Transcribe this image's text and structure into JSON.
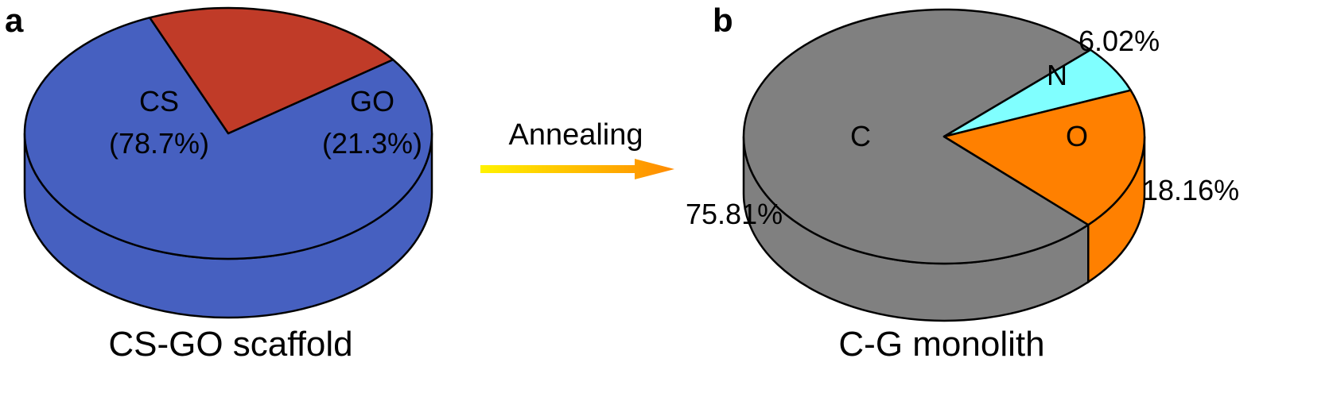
{
  "arrow": {
    "label": "Annealing"
  },
  "chart_data": [
    {
      "type": "pie",
      "panel_label": "a",
      "caption": "CS-GO scaffold",
      "slices": [
        {
          "label": "CS",
          "value_label": "(78.7%)",
          "value": 78.7,
          "color": "#4660C0"
        },
        {
          "label": "GO",
          "value_label": "(21.3%)",
          "value": 21.3,
          "color": "#C03B28"
        }
      ]
    },
    {
      "type": "pie",
      "panel_label": "b",
      "caption": "C-G monolith",
      "slices": [
        {
          "label": "C",
          "value_label": "75.81%",
          "value": 75.81,
          "color": "#808080"
        },
        {
          "label": "N",
          "value_label": "6.02%",
          "value": 6.02,
          "color": "#80FFFF"
        },
        {
          "label": "O",
          "value_label": "18.16%",
          "value": 18.16,
          "color": "#FF8000"
        }
      ]
    }
  ]
}
